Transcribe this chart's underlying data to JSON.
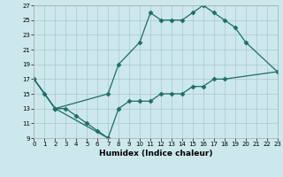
{
  "bg_color": "#cce8ec",
  "grid_color": "#b0cdd2",
  "line_color": "#1e6e65",
  "xlabel": "Humidex (Indice chaleur)",
  "xlim": [
    0,
    23
  ],
  "ylim": [
    9,
    27
  ],
  "xticks": [
    0,
    1,
    2,
    3,
    4,
    5,
    6,
    7,
    8,
    9,
    10,
    11,
    12,
    13,
    14,
    15,
    16,
    17,
    18,
    19,
    20,
    21,
    22,
    23
  ],
  "yticks": [
    9,
    11,
    13,
    15,
    17,
    19,
    21,
    23,
    25,
    27
  ],
  "line1_x": [
    0,
    1,
    2,
    3,
    4,
    5,
    6,
    7
  ],
  "line1_y": [
    17,
    15,
    13,
    13,
    12,
    11,
    10,
    9
  ],
  "line2_x": [
    0,
    2,
    7,
    8,
    10,
    11,
    12,
    13,
    14,
    15,
    16,
    17,
    18,
    19,
    20,
    23
  ],
  "line2_y": [
    17,
    13,
    15,
    19,
    22,
    26,
    25,
    25,
    25,
    26,
    27,
    26,
    25,
    24,
    22,
    18
  ],
  "line3_x": [
    0,
    2,
    7,
    8,
    9,
    10,
    11,
    12,
    13,
    14,
    15,
    16,
    17,
    18,
    23
  ],
  "line3_y": [
    17,
    13,
    9,
    13,
    14,
    14,
    14,
    15,
    15,
    15,
    16,
    16,
    17,
    17,
    18
  ]
}
